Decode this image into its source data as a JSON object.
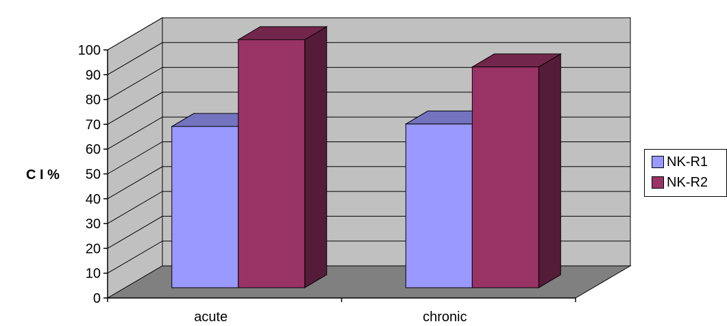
{
  "chart_data": {
    "type": "bar",
    "categories": [
      "acute",
      "chronic"
    ],
    "series": [
      {
        "name": "NK-R1",
        "values": [
          65,
          66
        ]
      },
      {
        "name": "NK-R2",
        "values": [
          100,
          89
        ]
      }
    ],
    "ylabel": "C I %",
    "xlabel": "",
    "title": "",
    "ylim": [
      0,
      100
    ],
    "yticks": [
      "0",
      "10",
      "20",
      "30",
      "40",
      "50",
      "60",
      "70",
      "80",
      "90",
      "100"
    ],
    "grid": true,
    "legend_position": "right",
    "three_d": true,
    "colors": {
      "NK-R1": "#9999ff",
      "NK-R2": "#993366",
      "back_wall": "#c0c0c0",
      "floor": "#808080",
      "side_wall": "#c0c0c0"
    }
  }
}
